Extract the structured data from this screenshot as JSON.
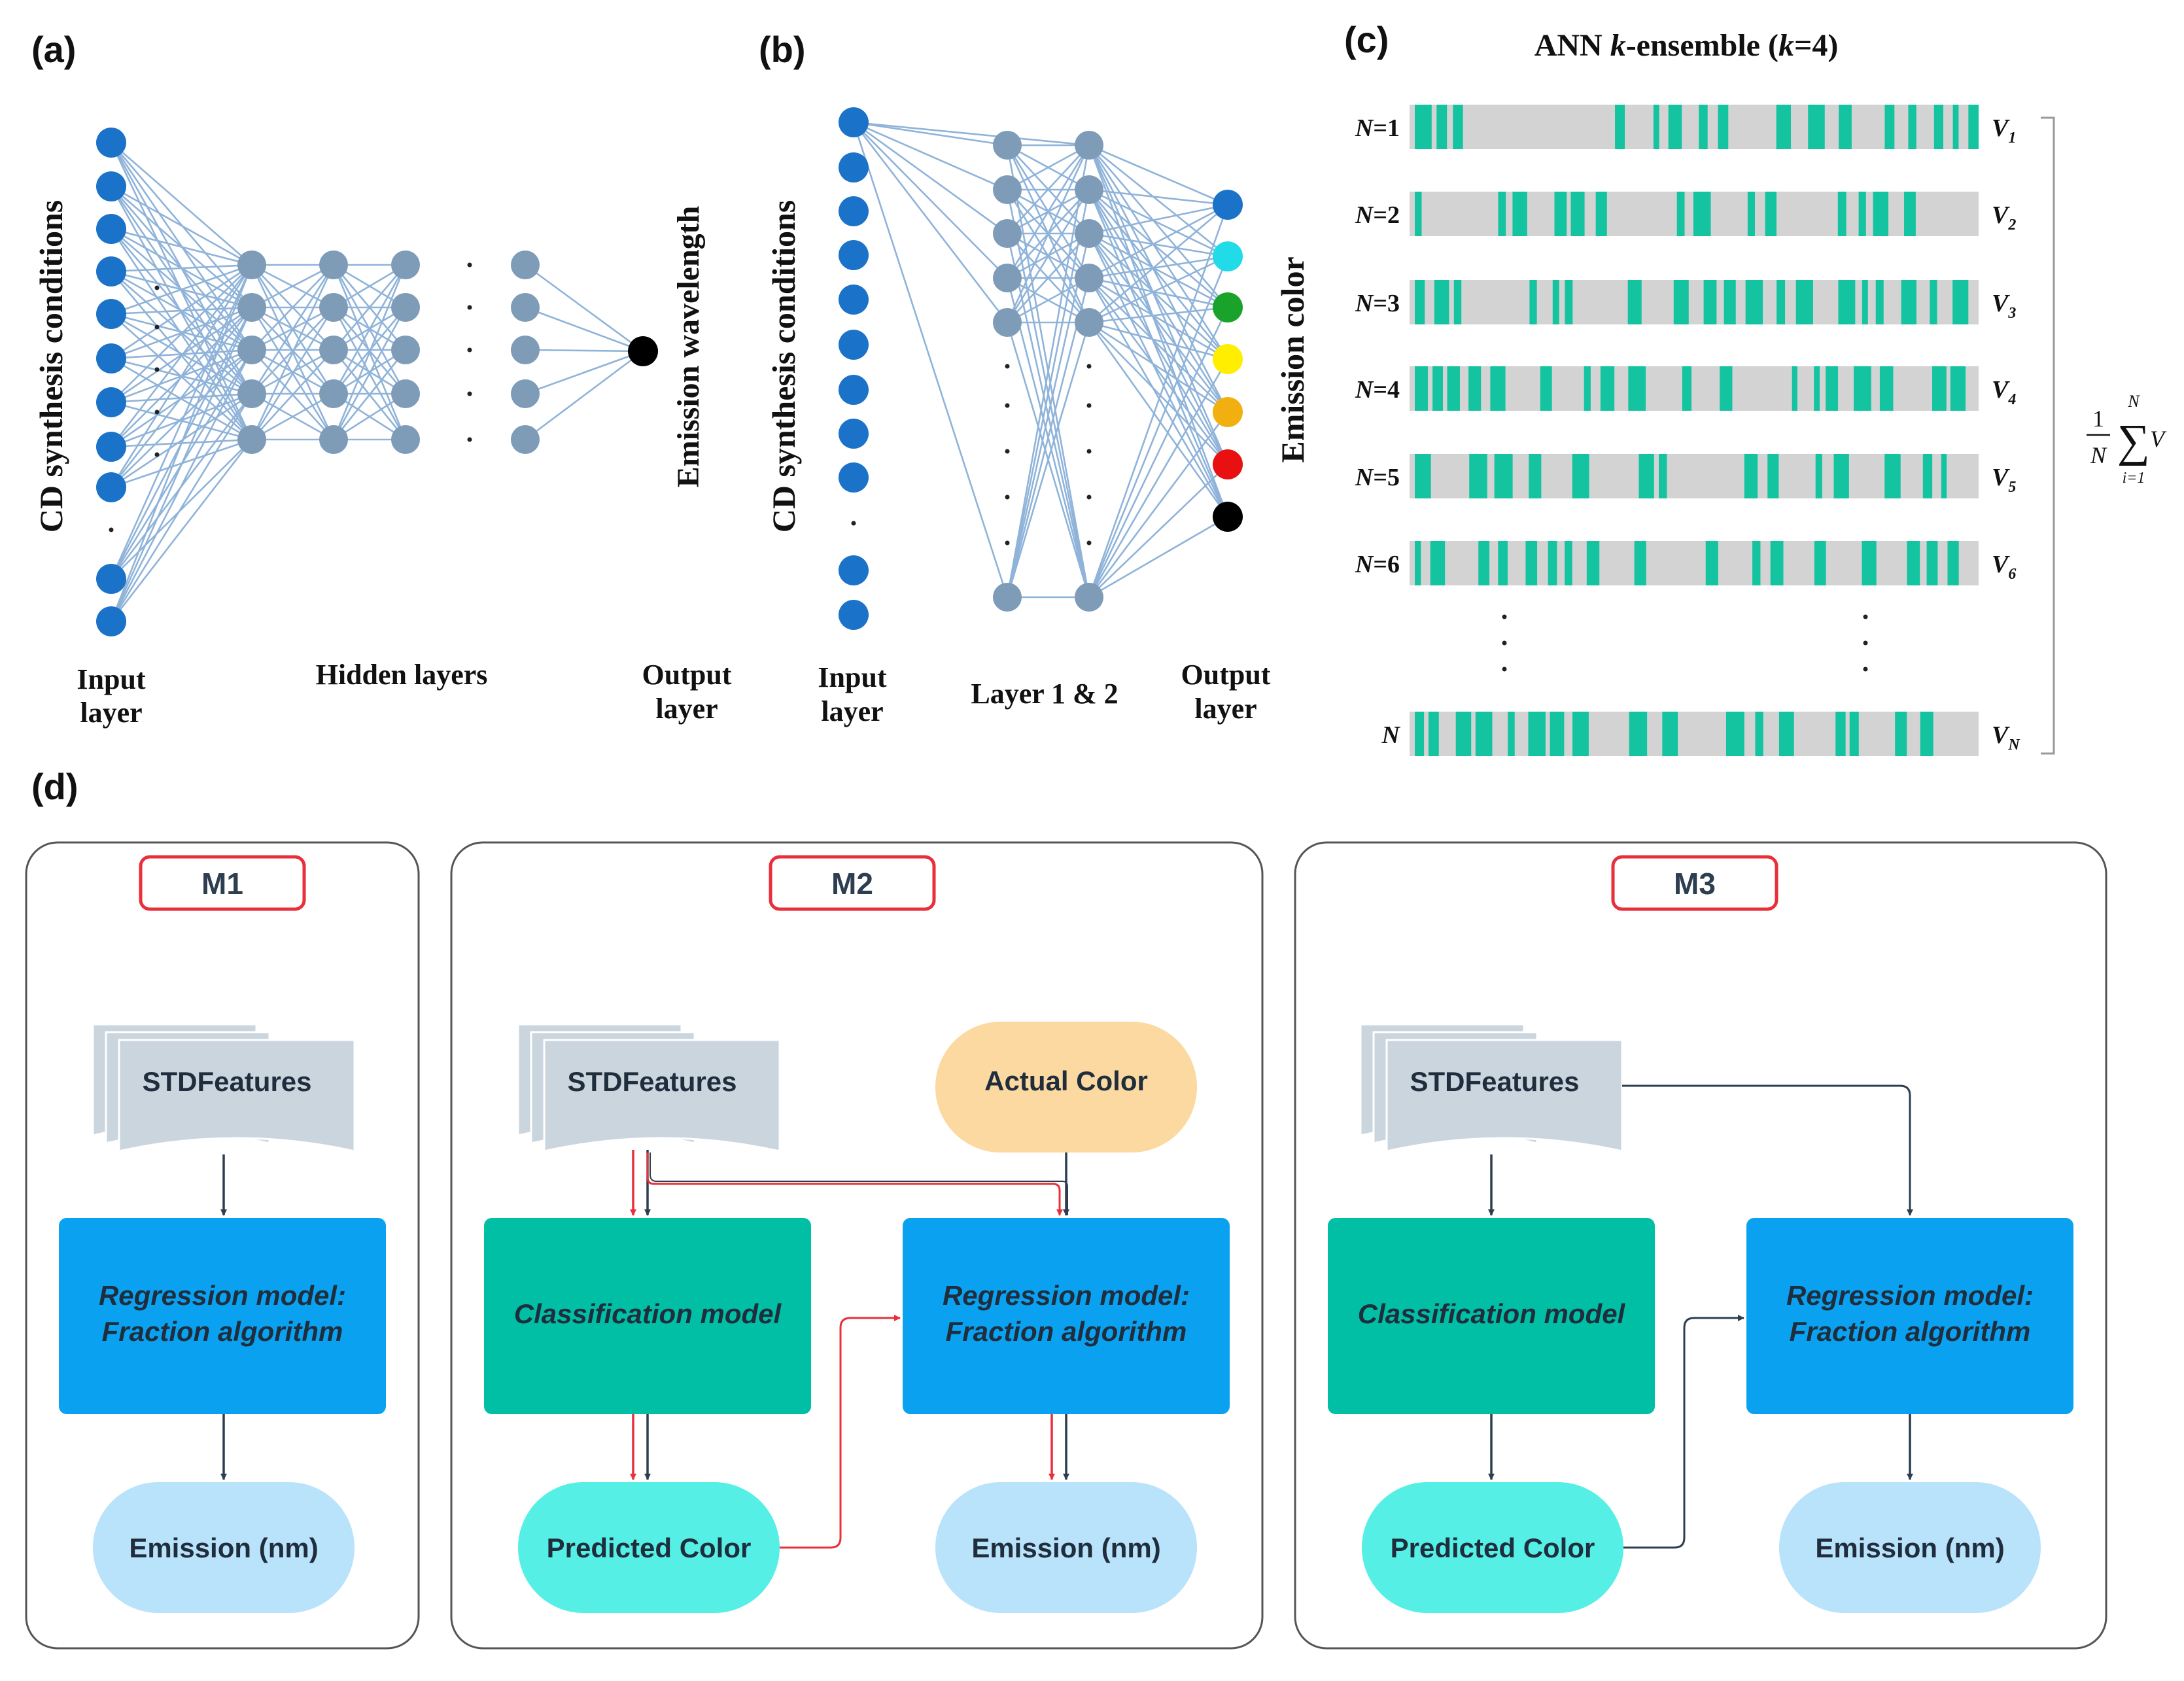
{
  "panels": {
    "a": {
      "label": "(a)",
      "input_axis": "CD synthesis conditions",
      "output_axis": "Emission wavelength",
      "input_layer": [
        "Input",
        "layer"
      ],
      "hidden_layers": "Hidden layers",
      "output_layer": [
        "Output",
        "layer"
      ]
    },
    "b": {
      "label": "(b)",
      "input_axis": "CD synthesis conditions",
      "output_axis": "Emission color",
      "input_layer": [
        "Input",
        "layer"
      ],
      "hidden_layers": "Layer 1 & 2",
      "output_layer": [
        "Output",
        "layer"
      ],
      "output_colors": [
        "#1a73c8",
        "#22dbe8",
        "#1aa32a",
        "#ffee00",
        "#f2b010",
        "#e81010",
        "#000000"
      ]
    },
    "c": {
      "label": "(c)",
      "title_pre": "ANN ",
      "title_k": "k",
      "title_mid": "-ensemble (",
      "title_k2": "k",
      "title_post": "=4)",
      "rows": [
        {
          "n": "N",
          "n_eq": "=1",
          "v": "V",
          "v_sub": "1"
        },
        {
          "n": "N",
          "n_eq": "=2",
          "v": "V",
          "v_sub": "2"
        },
        {
          "n": "N",
          "n_eq": "=3",
          "v": "V",
          "v_sub": "3"
        },
        {
          "n": "N",
          "n_eq": "=4",
          "v": "V",
          "v_sub": "4"
        },
        {
          "n": "N",
          "n_eq": "=5",
          "v": "V",
          "v_sub": "5"
        },
        {
          "n": "N",
          "n_eq": "=6",
          "v": "V",
          "v_sub": "6"
        },
        {
          "n": "N",
          "n_eq": "",
          "v": "V",
          "v_sub": "N"
        }
      ],
      "formula": {
        "numerator": "1",
        "denominator": "N",
        "upper": "N",
        "lower": "i=1",
        "var": "V"
      }
    },
    "d": {
      "label": "(d)",
      "models": [
        {
          "title": "M1",
          "features": "STDFeatures",
          "regression": [
            "Regression model:",
            "Fraction algorithm"
          ],
          "emission": "Emission (nm)"
        },
        {
          "title": "M2",
          "features": "STDFeatures",
          "actual_color": "Actual Color",
          "classification": "Classification model",
          "regression": [
            "Regression model:",
            "Fraction algorithm"
          ],
          "predicted": "Predicted Color",
          "emission": "Emission (nm)"
        },
        {
          "title": "M3",
          "features": "STDFeatures",
          "classification": "Classification model",
          "regression": [
            "Regression model:",
            "Fraction algorithm"
          ],
          "predicted": "Predicted Color",
          "emission": "Emission (nm)"
        }
      ]
    }
  },
  "colors": {
    "node_blue": "#1a73c8",
    "node_gray": "#7e9bb8",
    "bar_teal": "#14c4a0",
    "bar_gray": "#d3d3d3",
    "regression_fill": "#0aa2f0",
    "classification_fill": "#00bfa5",
    "predicted_fill": "#55efe6",
    "emission_fill": "#b9e2fb",
    "actual_fill": "#fbd9a0",
    "features_fill": "#cbd5de",
    "title_border": "#e8303a",
    "arrow_dark": "#2d3e50",
    "arrow_red": "#e8303a"
  },
  "icons": {
    "arrow": "arrow-icon",
    "doc_stack": "document-stack-icon"
  }
}
